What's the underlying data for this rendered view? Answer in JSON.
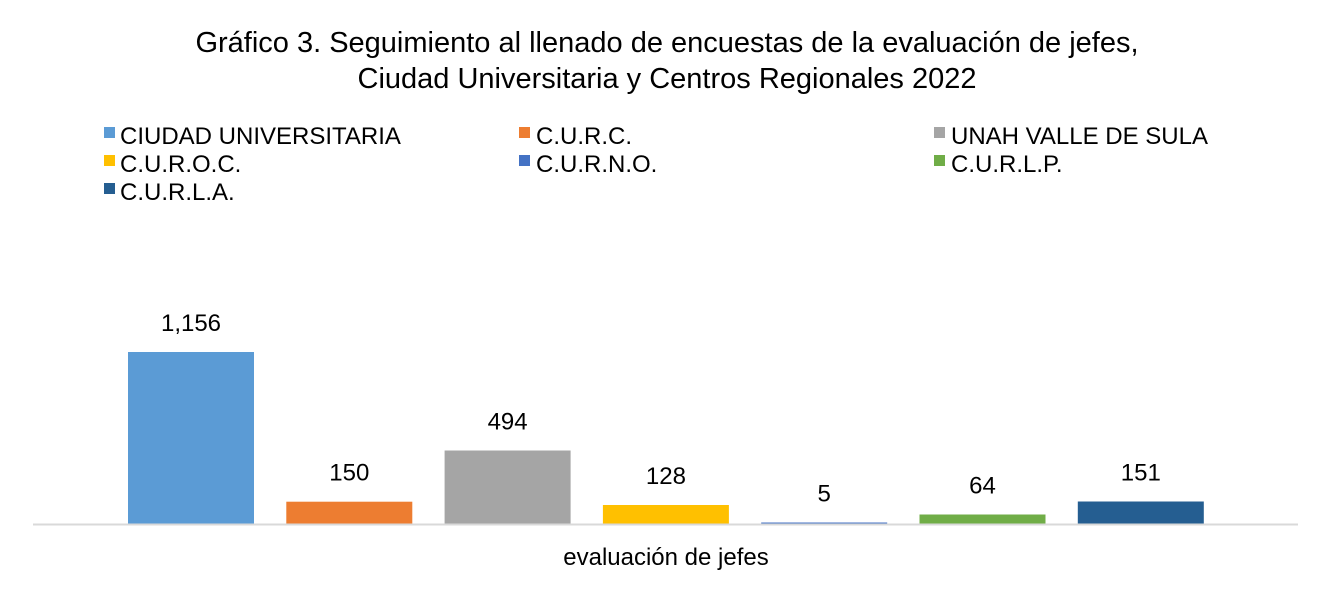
{
  "chart_data": {
    "type": "bar",
    "title": "Gráfico 3.  Seguimiento al llenado de encuestas de la evaluación de jefes,",
    "subtitle": "Ciudad Universitaria y Centros Regionales 2022",
    "categories": [
      "evaluación de jefes"
    ],
    "xlabel": "",
    "ylabel": "",
    "ylim": [
      0,
      1156
    ],
    "grid": false,
    "legend_position": "top",
    "series": [
      {
        "name": "CIUDAD UNIVERSITARIA",
        "values": [
          1156
        ],
        "label": "1,156",
        "color": "#5B9BD5"
      },
      {
        "name": "C.U.R.C.",
        "values": [
          150
        ],
        "label": "150",
        "color": "#ED7D31"
      },
      {
        "name": "UNAH VALLE DE SULA",
        "values": [
          494
        ],
        "label": "494",
        "color": "#A5A5A5"
      },
      {
        "name": "C.U.R.O.C.",
        "values": [
          128
        ],
        "label": "128",
        "color": "#FFC000"
      },
      {
        "name": "C.U.R.N.O.",
        "values": [
          5
        ],
        "label": "5",
        "color": "#4472C4"
      },
      {
        "name": "C.U.R.L.P.",
        "values": [
          64
        ],
        "label": "64",
        "color": "#70AD47"
      },
      {
        "name": "C.U.R.L.A.",
        "values": [
          151
        ],
        "label": "151",
        "color": "#255E91"
      }
    ]
  }
}
